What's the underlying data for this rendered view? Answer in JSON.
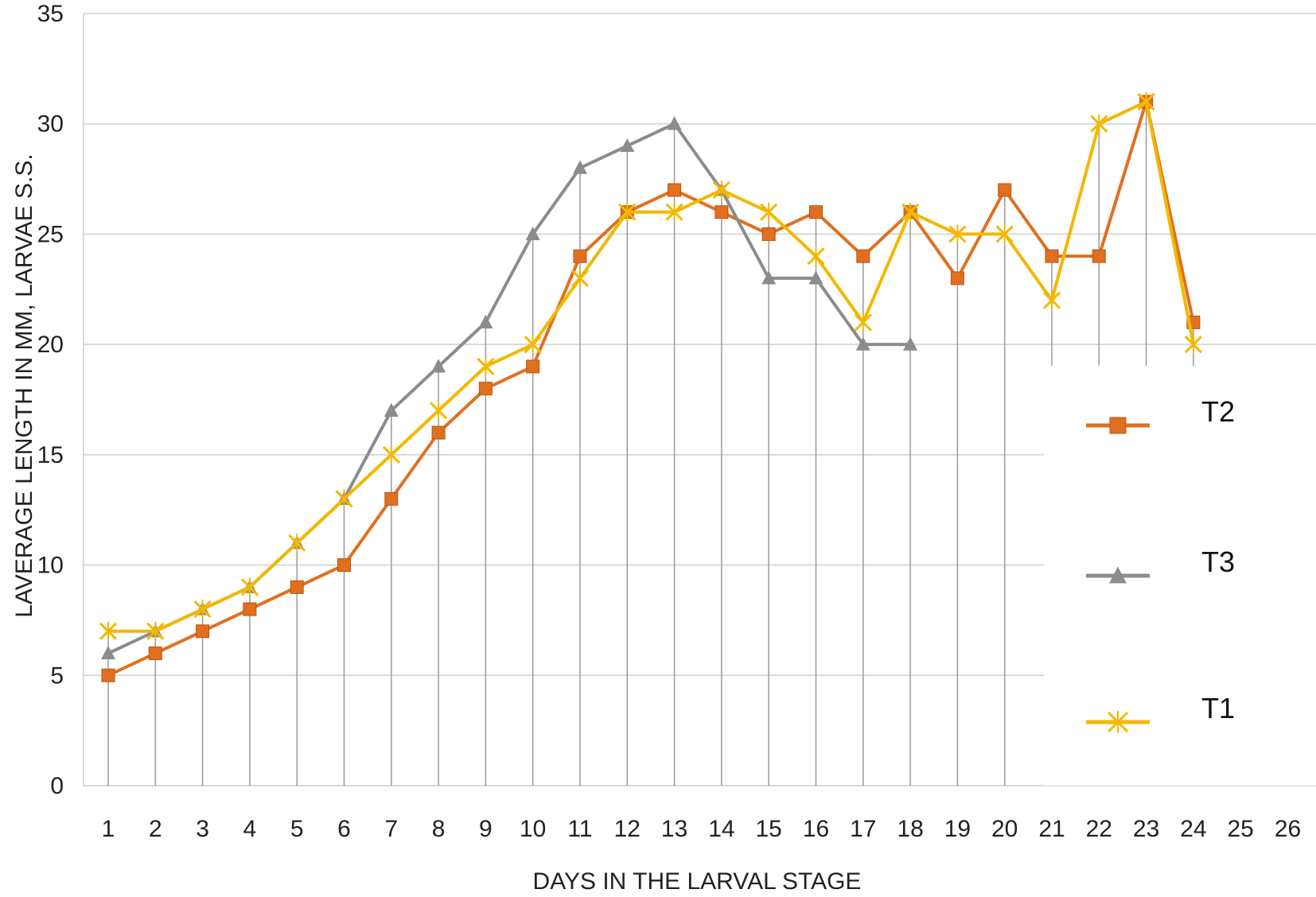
{
  "chart_data": {
    "type": "line",
    "xlabel": "DAYS IN THE LARVAL STAGE",
    "ylabel": "LAVERAGE LENGTH IN MM, LARVAE S.S.",
    "x": [
      1,
      2,
      3,
      4,
      5,
      6,
      7,
      8,
      9,
      10,
      11,
      12,
      13,
      14,
      15,
      16,
      17,
      18,
      19,
      20,
      21,
      22,
      23,
      24,
      25,
      26
    ],
    "xlim": [
      1,
      26
    ],
    "ylim": [
      0,
      35
    ],
    "yticks": [
      0,
      5,
      10,
      15,
      20,
      25,
      30,
      35
    ],
    "grid": true,
    "legend_position": "right",
    "series": [
      {
        "name": "T2",
        "color": "#E07020",
        "marker": "square",
        "values": [
          5,
          6,
          7,
          8,
          9,
          10,
          13,
          16,
          18,
          19,
          24,
          26,
          27,
          26,
          25,
          26,
          24,
          26,
          23,
          27,
          24,
          24,
          31,
          21,
          null,
          null
        ]
      },
      {
        "name": "T3",
        "color": "#8C8C8C",
        "marker": "triangle",
        "values": [
          6,
          7,
          8,
          9,
          11,
          13,
          17,
          19,
          21,
          25,
          28,
          29,
          30,
          27,
          23,
          23,
          20,
          20,
          null,
          null,
          null,
          null,
          null,
          null,
          null,
          null
        ]
      },
      {
        "name": "T1",
        "color": "#F2B800",
        "marker": "x",
        "values": [
          7,
          7,
          8,
          9,
          11,
          13,
          15,
          17,
          19,
          20,
          23,
          26,
          26,
          27,
          26,
          24,
          21,
          26,
          25,
          25,
          22,
          30,
          31,
          20,
          null,
          null
        ]
      }
    ],
    "legend_order": [
      "T2",
      "T3",
      "T1"
    ]
  }
}
